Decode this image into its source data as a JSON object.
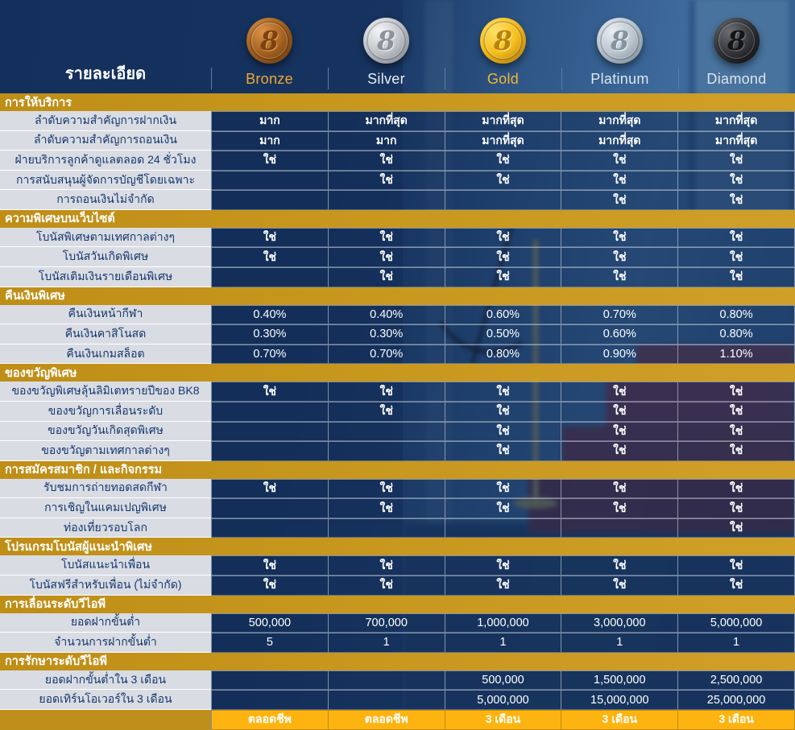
{
  "table": {
    "details_header": "รายละเอียด",
    "tiers": [
      {
        "name": "Bronze",
        "coin_glyph": "8",
        "name_color": "#F2A72E",
        "coin_color": "#A5611F"
      },
      {
        "name": "Silver",
        "coin_glyph": "8",
        "name_color": "#E9EDF2",
        "coin_color": "#C0C4CA"
      },
      {
        "name": "Gold",
        "coin_glyph": "8",
        "name_color": "#F5B62A",
        "coin_color": "#F5BE1E"
      },
      {
        "name": "Platinum",
        "coin_glyph": "8",
        "name_color": "#DFE6ED",
        "coin_color": "#BAC5CE"
      },
      {
        "name": "Diamond",
        "coin_glyph": "8",
        "name_color": "#DFE3E9",
        "coin_color": "#36373C"
      }
    ],
    "sections": [
      {
        "title": "การให้บริการ",
        "rows": [
          {
            "label": "ลำดับความสำคัญการฝากเงิน",
            "values": [
              "มาก",
              "มากที่สุด",
              "มากที่สุด",
              "มากที่สุด",
              "มากที่สุด"
            ]
          },
          {
            "label": "ลำดับความสำคัญการถอนเงิน",
            "values": [
              "มาก",
              "มาก",
              "มากที่สุด",
              "มากที่สุด",
              "มากที่สุด"
            ]
          },
          {
            "label": "ฝ่ายบริการลูกค้าดูแลตลอด 24 ชั่วโมง",
            "values": [
              "ใช่",
              "ใช่",
              "ใช่",
              "ใช่",
              "ใช่"
            ]
          },
          {
            "label": "การสนับสนุนผู้จัดการบัญชีโดยเฉพาะ",
            "values": [
              "",
              "ใช่",
              "ใช่",
              "ใช่",
              "ใช่"
            ]
          },
          {
            "label": "การถอนเงินไม่จำกัด",
            "values": [
              "",
              "",
              "",
              "ใช่",
              "ใช่"
            ]
          }
        ]
      },
      {
        "title": "ความพิเศษบนเว็บไซต์",
        "rows": [
          {
            "label": "โบนัสพิเศษตามเทศกาลต่างๆ",
            "values": [
              "ใช่",
              "ใช่",
              "ใช่",
              "ใช่",
              "ใช่"
            ]
          },
          {
            "label": "โบนัสวันเกิดพิเศษ",
            "values": [
              "ใช่",
              "ใช่",
              "ใช่",
              "ใช่",
              "ใช่"
            ]
          },
          {
            "label": "โบนัสเติมเงินรายเดือนพิเศษ",
            "values": [
              "",
              "ใช่",
              "ใช่",
              "ใช่",
              "ใช่"
            ]
          }
        ]
      },
      {
        "title": "คืนเงินพิเศษ",
        "rows": [
          {
            "label": "คืนเงินหน้ากีฬา",
            "values": [
              "0.40%",
              "0.40%",
              "0.60%",
              "0.70%",
              "0.80%"
            ]
          },
          {
            "label": "คืนเงินคาสิโนสด",
            "values": [
              "0.30%",
              "0.30%",
              "0.50%",
              "0.60%",
              "0.80%"
            ]
          },
          {
            "label": "คืนเงินเกมสล็อต",
            "values": [
              "0.70%",
              "0.70%",
              "0.80%",
              "0.90%",
              "1.10%"
            ]
          }
        ]
      },
      {
        "title": "ของขวัญพิเศษ",
        "rows": [
          {
            "label": "ของขวัญพิเศษลุ้นลิมิเตทรายปีของ BK8",
            "values": [
              "ใช่",
              "ใช่",
              "ใช่",
              "ใช่",
              "ใช่"
            ]
          },
          {
            "label": "ของขวัญการเลื่อนระดับ",
            "values": [
              "",
              "ใช่",
              "ใช่",
              "ใช่",
              "ใช่"
            ]
          },
          {
            "label": "ของขวัญวันเกิดสุดพิเศษ",
            "values": [
              "",
              "",
              "ใช่",
              "ใช่",
              "ใช่"
            ]
          },
          {
            "label": "ของขวัญตามเทศกาลต่างๆ",
            "values": [
              "",
              "",
              "ใช่",
              "ใช่",
              "ใช่"
            ]
          }
        ]
      },
      {
        "title": "การสมัครสมาชิก / และกิจกรรม",
        "rows": [
          {
            "label": "รับชมการถ่ายทอดสดกีฬา",
            "values": [
              "ใช่",
              "ใช่",
              "ใช่",
              "ใช่",
              "ใช่"
            ]
          },
          {
            "label": "การเชิญในแคมเปญพิเศษ",
            "values": [
              "",
              "ใช่",
              "ใช่",
              "ใช่",
              "ใช่"
            ]
          },
          {
            "label": "ท่องเที่ยวรอบโลก",
            "values": [
              "",
              "",
              "",
              "",
              "ใช่"
            ]
          }
        ]
      },
      {
        "title": "โปรแกรมโบนัสผู้แนะนำพิเศษ",
        "rows": [
          {
            "label": "โบนัสแนะนำเพื่อน",
            "values": [
              "ใช่",
              "ใช่",
              "ใช่",
              "ใช่",
              "ใช่"
            ]
          },
          {
            "label": "โบนัสฟรีสำหรับเพื่อน (ไม่จำกัด)",
            "values": [
              "ใช่",
              "ใช่",
              "ใช่",
              "ใช่",
              "ใช่"
            ]
          }
        ]
      },
      {
        "title": "การเลื่อนระดับวีไอพี",
        "rows": [
          {
            "label": "ยอดฝากขั้นต่ำ",
            "values": [
              "500,000",
              "700,000",
              "1,000,000",
              "3,000,000",
              "5,000,000"
            ]
          },
          {
            "label": "จำนวนการฝากขั้นต่ำ",
            "values": [
              "5",
              "1",
              "1",
              "1",
              "1"
            ]
          }
        ]
      },
      {
        "title": "การรักษาระดับวีไอพี",
        "rows": [
          {
            "label": "ยอดฝากขั้นต่ำใน 3 เดือน",
            "values": [
              "",
              "",
              "500,000",
              "1,500,000",
              "2,500,000"
            ]
          },
          {
            "label": "ยอดเทิร์นโอเวอร์ใน 3 เดือน",
            "values": [
              "",
              "",
              "5,000,000",
              "15,000,000",
              "25,000,000"
            ]
          }
        ]
      }
    ],
    "footer_row": {
      "values": [
        "ตลอดชีพ",
        "ตลอดชีพ",
        "3 เดือน",
        "3 เดือน",
        "3 เดือน"
      ]
    }
  },
  "colors": {
    "section_header_gold": "#C7961D",
    "footer_label_gold": "#BE8F1B",
    "footer_cell_yellow": "#FDB411",
    "cell_navy": "#1E3A64",
    "label_bg": "#D9DCE3",
    "label_text": "#16386E",
    "page_navy": "#14305C"
  }
}
